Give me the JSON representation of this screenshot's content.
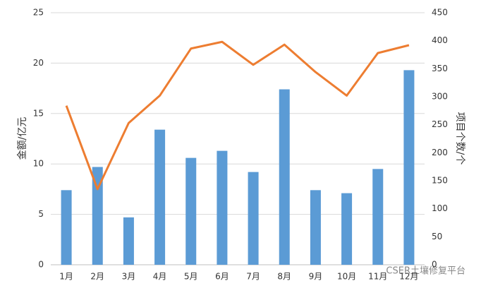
{
  "chart_data": {
    "type": "bar",
    "categories": [
      "1月",
      "2月",
      "3月",
      "4月",
      "5月",
      "6月",
      "7月",
      "8月",
      "9月",
      "10月",
      "11月",
      "12月"
    ],
    "ylabel": "金额/亿元",
    "y2label": "项目个数/个",
    "ylim": [
      0,
      25
    ],
    "yticks": [
      0,
      5,
      10,
      15,
      20,
      25
    ],
    "y2lim": [
      0,
      450
    ],
    "y2ticks": [
      0,
      50,
      100,
      150,
      200,
      250,
      300,
      350,
      400,
      450
    ],
    "grid": true,
    "series": [
      {
        "type": "bar",
        "color": "#5b9bd5",
        "values": [
          7.4,
          9.7,
          4.7,
          13.4,
          10.6,
          11.3,
          9.2,
          17.4,
          7.4,
          7.1,
          9.5,
          19.3
        ]
      },
      {
        "type": "line",
        "axis": "y2",
        "color": "#ed7d31",
        "values": [
          284,
          135,
          253,
          302,
          386,
          398,
          357,
          393,
          344,
          302,
          378,
          392
        ]
      }
    ],
    "watermark": "CSER土壤修复平台"
  }
}
